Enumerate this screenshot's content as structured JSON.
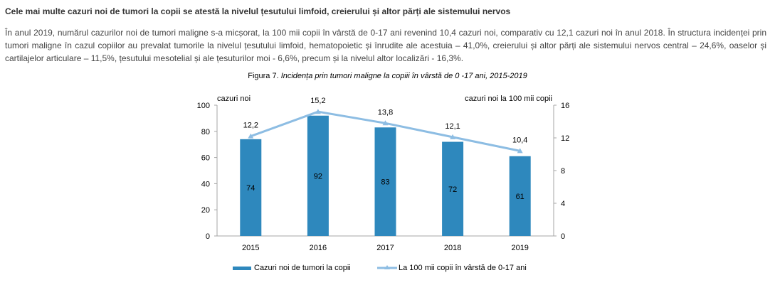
{
  "heading": "Cele mai multe cazuri noi de tumori la copii se atestă la nivelul țesutului limfoid, creierului și altor părți ale sistemului nervos",
  "paragraph": "În anul 2019, numărul cazurilor noi de tumori maligne s-a micșorat, la 100 mii copii în vârstă de 0-17 ani revenind 10,4 cazuri noi, comparativ cu 12,1 cazuri noi în anul 2018. În structura incidenței prin tumori maligne în cazul copiilor au prevalat tumorile la nivelul țesutului limfoid, hematopoietic și înrudite ale acestuia – 41,0%, creierului și altor părți ale sistemului nervos central – 24,6%, oaselor și cartilajelor articulare – 11,5%, țesutului mesotelial și ale țesuturilor moi - 6,6%, precum și la nivelul altor localizări - 16,3%.",
  "figure": {
    "label": "Figura 7. ",
    "title": "Incidența prin tumori maligne la copiii în vârstă de 0 -17 ani, 2015-2019"
  },
  "chart_data": {
    "type": "bar+line",
    "title": "Incidența prin tumori maligne la copiii în vârstă de 0 -17 ani, 2015-2019",
    "categories": [
      "2015",
      "2016",
      "2017",
      "2018",
      "2019"
    ],
    "series": [
      {
        "name": "Cazuri noi de tumori la copii",
        "type": "bar",
        "axis": "left",
        "values": [
          74,
          92,
          83,
          72,
          61
        ],
        "labels": [
          "74",
          "92",
          "83",
          "72",
          "61"
        ],
        "color": "#2e88bd"
      },
      {
        "name": "La 100 mii copii în vârstă de 0-17 ani",
        "type": "line",
        "axis": "right",
        "values": [
          12.2,
          15.2,
          13.8,
          12.1,
          10.4
        ],
        "labels": [
          "12,2",
          "15,2",
          "13,8",
          "12,1",
          "10,4"
        ],
        "color": "#8dbde3"
      }
    ],
    "ylabel_left": "cazuri noi",
    "ylabel_right": "cazuri noi la 100 mii copii",
    "ylim_left": [
      0,
      100
    ],
    "yticks_left": [
      0,
      20,
      40,
      60,
      80,
      100
    ],
    "ylim_right": [
      0,
      16
    ],
    "yticks_right": [
      0,
      4,
      8,
      12,
      16
    ],
    "grid": false,
    "legend": "bottom"
  }
}
